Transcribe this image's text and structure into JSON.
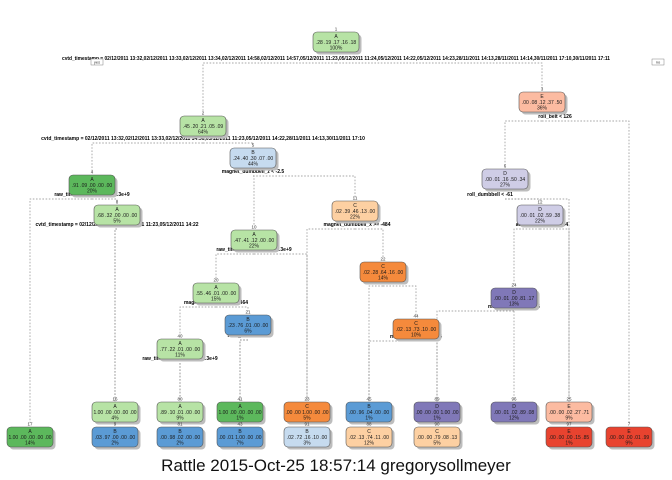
{
  "caption": "Rattle 2015-Oct-25 18:57:14 gregorysollmeyer",
  "yes_label": "yes",
  "no_label": "no",
  "colors": {
    "A": "#b7e3a5",
    "A_dark": "#5cb85c",
    "B": "#c6dbef",
    "B_dark": "#5b9bd5",
    "C": "#fdd0a2",
    "C_dark": "#f58a3c",
    "D": "#cfcde6",
    "D_dark": "#8078b8",
    "E": "#fcbba1",
    "E_dark": "#e8432f"
  },
  "tree": {
    "nodes": [
      {
        "id": "n1",
        "num": "1",
        "cls": "A",
        "vals": ".28 .19 .17 .16 .18",
        "pct": "100%",
        "shade": "A"
      },
      {
        "id": "n2",
        "num": "2",
        "cls": "A",
        "vals": ".45 .20 .21 .05 .09",
        "pct": "64%",
        "shade": "A"
      },
      {
        "id": "n3",
        "num": "3",
        "cls": "E",
        "vals": ".00 .08 .12 .37 .50",
        "pct": "36%",
        "shade": "E"
      },
      {
        "id": "n4",
        "num": "4",
        "cls": "A",
        "vals": ".91 .09 .00 .00 .00",
        "pct": "20%",
        "shade": "A_dark"
      },
      {
        "id": "n5",
        "num": "5",
        "cls": "B",
        "vals": ".24 .40 .30 .07 .00",
        "pct": "44%",
        "shade": "B"
      },
      {
        "id": "n6",
        "num": "6",
        "cls": "D",
        "vals": ".00 .01 .16 .50 .34",
        "pct": "27%",
        "shade": "D"
      },
      {
        "id": "n8",
        "num": "8",
        "cls": "A",
        "vals": ".68 .32 .00 .00 .00",
        "pct": "5%",
        "shade": "A"
      },
      {
        "id": "n10",
        "num": "10",
        "cls": "A",
        "vals": ".47 .41 .12 .00 .00",
        "pct": "22%",
        "shade": "A"
      },
      {
        "id": "n11",
        "num": "11",
        "cls": "C",
        "vals": ".02 .39 .46 .13 .00",
        "pct": "22%",
        "shade": "C"
      },
      {
        "id": "n12",
        "num": "12",
        "cls": "D",
        "vals": ".00 .01 .02 .59 .38",
        "pct": "22%",
        "shade": "D"
      },
      {
        "id": "n20",
        "num": "20",
        "cls": "A",
        "vals": ".55 .46 .01 .00 .00",
        "pct": "15%",
        "shade": "A"
      },
      {
        "id": "n21",
        "num": "21",
        "cls": "B",
        "vals": ".23 .76 .01 .00 .00",
        "pct": "6%",
        "shade": "B_dark"
      },
      {
        "id": "n22",
        "num": "22",
        "cls": "C",
        "vals": ".02 .28 .64 .16 .00",
        "pct": "14%",
        "shade": "C_dark"
      },
      {
        "id": "n24",
        "num": "24",
        "cls": "D",
        "vals": ".00 .01 .00 .81 .17",
        "pct": "13%",
        "shade": "D_dark"
      },
      {
        "id": "n40",
        "num": "40",
        "cls": "A",
        "vals": ".77 .22 .01 .00 .00",
        "pct": "11%",
        "shade": "A"
      },
      {
        "id": "n44",
        "num": "44",
        "cls": "C",
        "vals": ".02 .13 .73 .10 .00",
        "pct": "10%",
        "shade": "C_dark"
      },
      {
        "id": "n16",
        "num": "16",
        "cls": "A",
        "vals": "1.00 .00 .00 .00 .00",
        "pct": "4%",
        "shade": "A"
      },
      {
        "id": "n80",
        "num": "80",
        "cls": "A",
        "vals": ".89 .10 .01 .00 .00",
        "pct": "9%",
        "shade": "A"
      },
      {
        "id": "n41",
        "num": "41",
        "cls": "A",
        "vals": "1.00 .00 .00 .00 .00",
        "pct": "1%",
        "shade": "A_dark"
      },
      {
        "id": "n23",
        "num": "23",
        "cls": "C",
        "vals": ".00 .00 1.00 .00 .00",
        "pct": "5%",
        "shade": "C_dark"
      },
      {
        "id": "n45",
        "num": "45",
        "cls": "B",
        "vals": ".00 .96 .04 .00 .00",
        "pct": "1%",
        "shade": "B_dark"
      },
      {
        "id": "n89",
        "num": "89",
        "cls": "D",
        "vals": ".00 .00 .00 1.00 .00",
        "pct": "1%",
        "shade": "D_dark"
      },
      {
        "id": "n96",
        "num": "96",
        "cls": "D",
        "vals": ".00 .01 .02 .89 .08",
        "pct": "12%",
        "shade": "D_dark"
      },
      {
        "id": "n25",
        "num": "25",
        "cls": "E",
        "vals": ".00 .00 .02 .27 .71",
        "pct": "9%",
        "shade": "E"
      },
      {
        "id": "n17",
        "num": "17",
        "cls": "A",
        "vals": "1.00 .00 .00 .00 .00",
        "pct": "14%",
        "shade": "A_dark"
      },
      {
        "id": "n9",
        "num": "9",
        "cls": "B",
        "vals": ".03 .97 .00 .00 .00",
        "pct": "2%",
        "shade": "B_dark"
      },
      {
        "id": "n81",
        "num": "81",
        "cls": "B",
        "vals": ".00 .98 .02 .00 .00",
        "pct": "2%",
        "shade": "B_dark"
      },
      {
        "id": "n43",
        "num": "43",
        "cls": "B",
        "vals": ".00 .01 1.00 .00 .00",
        "pct": "7%",
        "shade": "B_dark"
      },
      {
        "id": "n91",
        "num": "91",
        "cls": "B",
        "vals": ".02 .72 .16 .10 .00",
        "pct": "3%",
        "shade": "B"
      },
      {
        "id": "n88",
        "num": "88",
        "cls": "C",
        "vals": ".02 .13 .74 .11 .00",
        "pct": "12%",
        "shade": "C"
      },
      {
        "id": "n90",
        "num": "90",
        "cls": "C",
        "vals": ".00 .00 .79 .08 .13",
        "pct": "5%",
        "shade": "C"
      },
      {
        "id": "n97",
        "num": "97",
        "cls": "E",
        "vals": ".00 .00 .00 .15 .85",
        "pct": "1%",
        "shade": "E_dark"
      },
      {
        "id": "n7",
        "num": "7",
        "cls": "E",
        "vals": ".00 .00 .00 .01 .99",
        "pct": "9%",
        "shade": "E_dark"
      }
    ],
    "splits": [
      {
        "id": "s1",
        "text": "cvtd_timestamp = 02/12/2011 13:32,02/12/2011 13:33,02/12/2011 13:34,02/12/2011 14:58,02/12/2011 14:57,05/12/2011 11:23,05/12/2011 11:24,05/12/2011 14:22,05/12/2011 14:23,28/11/2011 14:13,28/11/2011 14:14,30/11/2011 17:10,30/11/2011 17:11"
      },
      {
        "id": "s2",
        "text": "cvtd_timestamp = 02/12/2011 13:32,02/12/2011 13:33,02/12/2011 14:56,05/12/2011 11:23,05/12/2011 14:22,28/11/2011 14:13,30/11/2011 17:10"
      },
      {
        "id": "s3",
        "text": "roll_belt < 126"
      },
      {
        "id": "s4",
        "text": "raw_timestamp_part_1 < 1.3e+9"
      },
      {
        "id": "s5",
        "text": "magnet_dumbbell_z < -2.5"
      },
      {
        "id": "s6",
        "text": "roll_dumbbell < -61"
      },
      {
        "id": "s8",
        "text": "cvtd_timestamp = 02/12/2011 14:56,05/12/2011 11:23,05/12/2011 14:22"
      },
      {
        "id": "s10",
        "text": "raw_timestamp_part_1 < 1.3e+9"
      },
      {
        "id": "s11",
        "text": "magnet_dumbbell_x >= -484"
      },
      {
        "id": "s12",
        "text": "accel_forearm_x < -84"
      },
      {
        "id": "s20",
        "text": "magnet_dumbbell_x < -464"
      },
      {
        "id": "s21",
        "text": "num_window < 60"
      },
      {
        "id": "s22",
        "text": "pitch_belt < -43"
      },
      {
        "id": "s24",
        "text": "magnet_belt_y >= 576"
      },
      {
        "id": "s40",
        "text": "raw_timestamp_part_1 < 1.3e+9"
      },
      {
        "id": "s44",
        "text": "magnet_belt_y >= 554"
      }
    ]
  }
}
